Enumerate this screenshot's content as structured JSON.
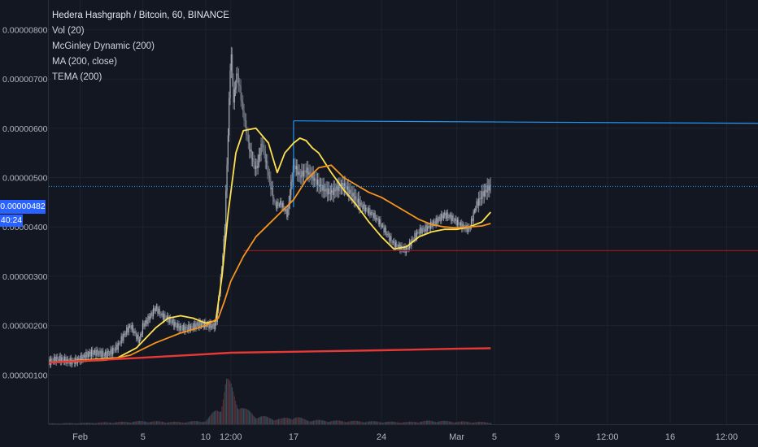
{
  "legend": {
    "title": "Hedera Hashgraph / Bitcoin, 60, BINANCE",
    "items": [
      "Vol (20)",
      "McGinley Dynamic (200)",
      "MA (200, close)",
      "TEMA (200)"
    ]
  },
  "price_badge": "0.00000482",
  "time_badge": "40:24",
  "colors": {
    "background": "#131722",
    "grid": "#1e222d",
    "candle_up": "#a7adb8",
    "candle_down": "#7d8290",
    "tema": "#ffe14d",
    "ma": "#f7941d",
    "mcginley": "#e53935",
    "hline_blue": "#2196f3",
    "hline_red": "#8b1a1a",
    "price_line": "#2196f3"
  },
  "chart_data": {
    "type": "line",
    "symbol": "Hedera Hashgraph / Bitcoin, 60, BINANCE",
    "y_ticks": [
      "0.00000800",
      "0.00000700",
      "0.00000600",
      "0.00000500",
      "0.00000400",
      "0.00000300",
      "0.00000200",
      "0.00000100"
    ],
    "y_tick_values": [
      8.0,
      7.0,
      6.0,
      5.0,
      4.0,
      3.0,
      2.0,
      1.0
    ],
    "y_unit": "×1e-6 BTC",
    "ylim": [
      0.0,
      8.6
    ],
    "x_ticks": [
      "Feb",
      "5",
      "10",
      "12:00",
      "17",
      "24",
      "Mar",
      "5",
      "9",
      "12:00",
      "16",
      "12:00"
    ],
    "x_tick_days": [
      0,
      5,
      10,
      12,
      17,
      24,
      30,
      33,
      38,
      42,
      47,
      51.5
    ],
    "xlim": [
      -2.5,
      54
    ],
    "last_price": 4.82,
    "price_series": {
      "name": "Hedera Hashgraph / Bitcoin",
      "x": [
        -2.5,
        -1,
        0,
        1,
        2,
        3,
        4,
        4.7,
        5,
        5.5,
        6,
        6.5,
        7,
        8,
        9,
        10,
        10.8,
        11.2,
        11.5,
        11.8,
        12,
        12.2,
        12.5,
        13,
        13.5,
        14,
        14.5,
        15,
        15.5,
        16,
        16.5,
        17,
        17.5,
        18,
        19,
        20,
        21,
        22,
        23,
        24,
        25,
        26,
        27,
        28,
        29,
        30,
        31,
        31.5,
        32,
        32.7
      ],
      "y": [
        1.25,
        1.3,
        1.35,
        1.4,
        1.45,
        1.6,
        1.95,
        1.7,
        2.05,
        2.2,
        2.35,
        2.15,
        2.1,
        2.0,
        1.95,
        2.0,
        2.05,
        3.0,
        3.9,
        6.0,
        7.6,
        6.5,
        7.1,
        6.3,
        5.6,
        5.2,
        5.7,
        5.0,
        4.4,
        4.5,
        4.3,
        5.3,
        5.0,
        5.1,
        4.9,
        4.7,
        4.8,
        4.6,
        4.3,
        4.0,
        3.7,
        3.5,
        3.9,
        4.1,
        4.2,
        4.1,
        4.0,
        4.4,
        4.6,
        4.82
      ]
    },
    "series": [
      {
        "name": "TEMA (200)",
        "x": [
          -2.5,
          3,
          4.5,
          6,
          7,
          8,
          9,
          10,
          10.8,
          11.3,
          11.8,
          12.4,
          13,
          14,
          15,
          15.7,
          16.3,
          17,
          17.5,
          18,
          18.5,
          19,
          20,
          21,
          22,
          23,
          24,
          25,
          26,
          27,
          28,
          29,
          30,
          31,
          32,
          32.7
        ],
        "y": [
          1.25,
          1.35,
          1.55,
          1.95,
          2.15,
          2.2,
          2.15,
          2.05,
          2.1,
          3.0,
          4.3,
          5.5,
          5.95,
          6.0,
          5.7,
          5.1,
          5.5,
          5.7,
          5.8,
          5.75,
          5.6,
          5.5,
          5.1,
          4.75,
          4.45,
          4.1,
          3.8,
          3.55,
          3.6,
          3.8,
          3.9,
          3.95,
          3.95,
          4.0,
          4.1,
          4.3
        ]
      },
      {
        "name": "MA (200, close)",
        "x": [
          -2.5,
          2,
          4,
          6,
          8,
          10,
          11,
          11.5,
          12,
          13,
          14,
          15,
          16,
          17,
          18,
          19,
          20,
          21,
          22,
          23,
          24,
          25,
          26,
          27,
          28,
          29,
          30,
          31,
          32,
          32.7
        ],
        "y": [
          1.25,
          1.3,
          1.4,
          1.65,
          1.85,
          2.0,
          2.15,
          2.5,
          2.9,
          3.4,
          3.8,
          4.05,
          4.3,
          4.55,
          4.95,
          5.2,
          5.25,
          5.0,
          4.85,
          4.7,
          4.6,
          4.45,
          4.3,
          4.15,
          4.05,
          4.0,
          3.98,
          4.0,
          4.02,
          4.07
        ]
      },
      {
        "name": "McGinley Dynamic (200)",
        "x": [
          -2.5,
          5,
          10,
          12,
          17,
          24,
          30,
          32.7
        ],
        "y": [
          1.25,
          1.35,
          1.42,
          1.45,
          1.47,
          1.5,
          1.53,
          1.54
        ]
      }
    ],
    "horizontal_lines": [
      {
        "x_start": 17,
        "y": 6.15,
        "y_end": 6.1,
        "color": "#2196f3"
      },
      {
        "x_start": 13,
        "y": 3.52,
        "y_end": 3.52,
        "color": "#8b1a1a"
      }
    ],
    "volume": {
      "name": "Vol (20)",
      "x": [
        -2.5,
        0,
        3,
        5,
        8,
        10,
        11.2,
        11.6,
        12,
        12.4,
        13,
        14,
        15,
        16,
        17,
        18,
        20,
        22,
        24,
        26,
        28,
        30,
        32,
        32.7
      ],
      "y": [
        0.02,
        0.03,
        0.05,
        0.07,
        0.05,
        0.08,
        0.45,
        1.0,
        0.85,
        0.6,
        0.35,
        0.2,
        0.15,
        0.12,
        0.18,
        0.1,
        0.08,
        0.07,
        0.06,
        0.05,
        0.08,
        0.06,
        0.05,
        0.04
      ]
    },
    "grid": true,
    "legend_position": "top-left"
  }
}
